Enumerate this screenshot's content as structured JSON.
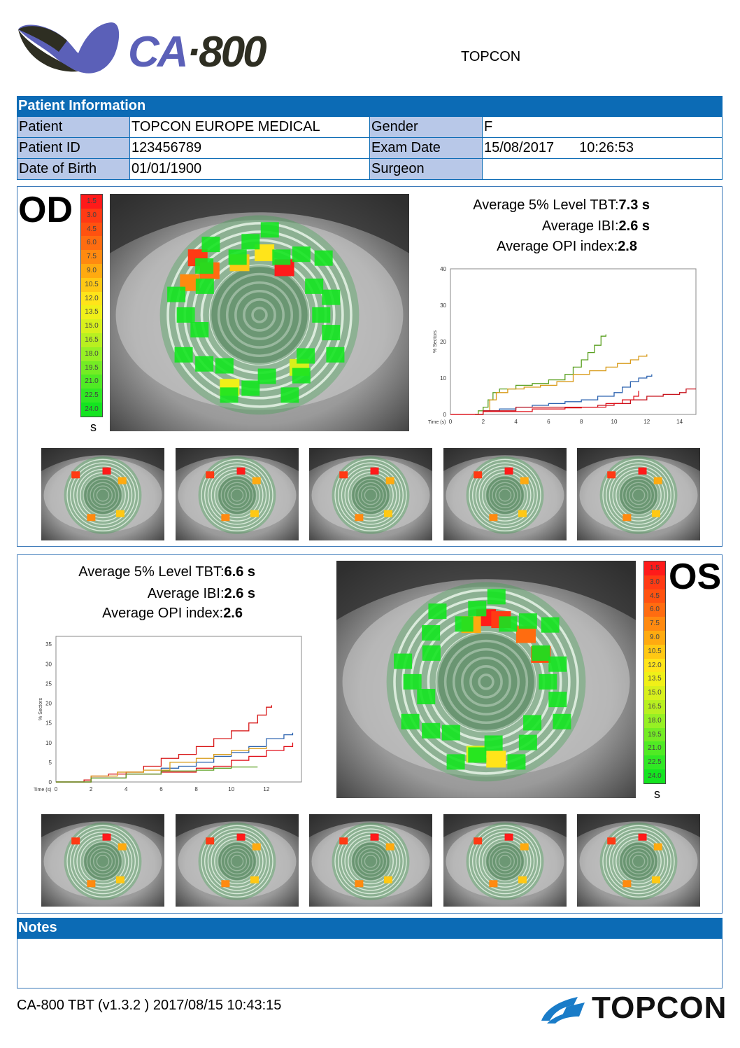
{
  "header": {
    "logo_ca": "CA",
    "logo_num": "·800",
    "brand": "TOPCON"
  },
  "patient_info": {
    "title": "Patient Information",
    "patient_label": "Patient",
    "patient_value": "TOPCON  EUROPE MEDICAL",
    "gender_label": "Gender",
    "gender_value": "F",
    "id_label": "Patient ID",
    "id_value": "123456789",
    "exam_date_label": "Exam Date",
    "exam_date_value": "15/08/2017",
    "exam_time_value": "10:26:53",
    "dob_label": "Date of Birth",
    "dob_value": "01/01/1900",
    "surgeon_label": "Surgeon",
    "surgeon_value": ""
  },
  "scale": {
    "values": [
      "1.5",
      "3.0",
      "4.5",
      "6.0",
      "7.5",
      "9.0",
      "10.5",
      "12.0",
      "13.5",
      "15.0",
      "16.5",
      "18.0",
      "19.5",
      "21.0",
      "22.5",
      "24.0"
    ],
    "colors": [
      "#ff1a1a",
      "#ff3a14",
      "#ff5210",
      "#ff6c10",
      "#ff8a10",
      "#ffaa10",
      "#ffc814",
      "#ffe41a",
      "#f0f018",
      "#d8f01c",
      "#b8f020",
      "#96f024",
      "#74ec24",
      "#50ea24",
      "#30e824",
      "#14e420"
    ],
    "unit": "s"
  },
  "od": {
    "label": "OD",
    "tbt_label": "Average 5% Level TBT:",
    "tbt_value": "7.3 s",
    "ibi_label": "Average IBI:",
    "ibi_value": "2.6 s",
    "opi_label": "Average OPI index:",
    "opi_value": "2.8"
  },
  "os": {
    "label": "OS",
    "tbt_label": "Average 5% Level TBT:",
    "tbt_value": "6.6 s",
    "ibi_label": "Average IBI:",
    "ibi_value": "2.6 s",
    "opi_label": "Average OPI index:",
    "opi_value": "2.6"
  },
  "chart_data": [
    {
      "type": "line",
      "eye": "OD",
      "xlabel": "Time (s)",
      "ylabel": "% Sectors",
      "xlim": [
        0,
        15
      ],
      "ylim": [
        0,
        40
      ],
      "xticks": [
        0,
        2,
        4,
        6,
        8,
        10,
        12,
        14
      ],
      "yticks": [
        0,
        10,
        20,
        30,
        40
      ],
      "grid": false,
      "series": [
        {
          "color": "#5aa020",
          "points": [
            [
              1.5,
              0
            ],
            [
              1.7,
              1
            ],
            [
              2,
              2
            ],
            [
              2.3,
              4
            ],
            [
              2.6,
              6
            ],
            [
              3,
              7
            ],
            [
              4,
              8
            ],
            [
              5,
              8.5
            ],
            [
              6,
              9.5
            ],
            [
              7,
              11
            ],
            [
              7.5,
              13
            ],
            [
              8,
              15
            ],
            [
              8.4,
              17
            ],
            [
              8.8,
              19
            ],
            [
              9.2,
              21.5
            ],
            [
              9.5,
              22
            ]
          ]
        },
        {
          "color": "#d89a18",
          "points": [
            [
              1.5,
              0
            ],
            [
              2,
              1
            ],
            [
              2.4,
              4
            ],
            [
              2.8,
              6
            ],
            [
              3.5,
              7
            ],
            [
              4.5,
              7.5
            ],
            [
              5.5,
              8
            ],
            [
              6.5,
              9
            ],
            [
              7.5,
              11
            ],
            [
              8.5,
              12
            ],
            [
              9.5,
              13
            ],
            [
              10.2,
              14
            ],
            [
              11,
              15
            ],
            [
              11.5,
              16
            ],
            [
              12,
              16.5
            ]
          ]
        },
        {
          "color": "#2e64b0",
          "points": [
            [
              1.5,
              0
            ],
            [
              2,
              1
            ],
            [
              3,
              1.5
            ],
            [
              4,
              2
            ],
            [
              5,
              2.5
            ],
            [
              6,
              3
            ],
            [
              7,
              3.5
            ],
            [
              8,
              4
            ],
            [
              9,
              5
            ],
            [
              10,
              6
            ],
            [
              10.5,
              7.5
            ],
            [
              11,
              9
            ],
            [
              11.5,
              10
            ],
            [
              12,
              10.5
            ],
            [
              12.3,
              11
            ]
          ]
        },
        {
          "color": "#c8141e",
          "points": [
            [
              0,
              0
            ],
            [
              2,
              1
            ],
            [
              4,
              2
            ],
            [
              6,
              2
            ],
            [
              8,
              2
            ],
            [
              9,
              2.5
            ],
            [
              10,
              3
            ],
            [
              11,
              4
            ],
            [
              12,
              5
            ],
            [
              13,
              5.5
            ],
            [
              14,
              6
            ],
            [
              14.4,
              7
            ],
            [
              15,
              7
            ]
          ]
        },
        {
          "color": "#e0101a",
          "points": [
            [
              0,
              0
            ],
            [
              2,
              0.8
            ],
            [
              5,
              1.5
            ],
            [
              7,
              1.8
            ],
            [
              8,
              2
            ],
            [
              9.5,
              3
            ],
            [
              10.5,
              4
            ],
            [
              11.2,
              5
            ],
            [
              11.5,
              6.5
            ]
          ]
        }
      ]
    },
    {
      "type": "line",
      "eye": "OS",
      "xlabel": "Time (s)",
      "ylabel": "% Sectors",
      "xlim": [
        0,
        14
      ],
      "ylim": [
        0,
        37
      ],
      "xticks": [
        0,
        2,
        4,
        6,
        8,
        10,
        12
      ],
      "yticks": [
        0,
        5,
        10,
        15,
        20,
        25,
        30,
        35
      ],
      "grid": false,
      "series": [
        {
          "color": "#d81818",
          "points": [
            [
              0,
              0
            ],
            [
              1.6,
              0.5
            ],
            [
              2,
              1.5
            ],
            [
              3,
              2
            ],
            [
              4,
              2.5
            ],
            [
              5,
              4
            ],
            [
              6,
              6
            ],
            [
              7,
              7
            ],
            [
              8,
              9
            ],
            [
              9,
              11
            ],
            [
              10,
              13
            ],
            [
              11,
              15
            ],
            [
              11.5,
              17
            ],
            [
              12,
              19
            ],
            [
              12.3,
              19.5
            ]
          ]
        },
        {
          "color": "#2e64b0",
          "points": [
            [
              0,
              0
            ],
            [
              2,
              1
            ],
            [
              4,
              2
            ],
            [
              6,
              3.5
            ],
            [
              7,
              4
            ],
            [
              8,
              5
            ],
            [
              9,
              6.5
            ],
            [
              10,
              7.5
            ],
            [
              11,
              9
            ],
            [
              12,
              11
            ],
            [
              13,
              12
            ],
            [
              13.5,
              12.5
            ]
          ]
        },
        {
          "color": "#d89a18",
          "points": [
            [
              0,
              0
            ],
            [
              2,
              1.5
            ],
            [
              3.5,
              2.5
            ],
            [
              5,
              3
            ],
            [
              6.5,
              5
            ],
            [
              8,
              6
            ],
            [
              9,
              7
            ],
            [
              10,
              8
            ],
            [
              11,
              8.5
            ],
            [
              12,
              9
            ]
          ]
        },
        {
          "color": "#e0101a",
          "points": [
            [
              0,
              0
            ],
            [
              2,
              1
            ],
            [
              4,
              2
            ],
            [
              6,
              2.5
            ],
            [
              8,
              3.5
            ],
            [
              9,
              4
            ],
            [
              10,
              5.5
            ],
            [
              11,
              6.5
            ],
            [
              12,
              8
            ],
            [
              13,
              9
            ],
            [
              13.5,
              10
            ]
          ]
        },
        {
          "color": "#5aa020",
          "points": [
            [
              0,
              0
            ],
            [
              2,
              1
            ],
            [
              4,
              2
            ],
            [
              6,
              2.8
            ],
            [
              8,
              3
            ],
            [
              9,
              3.5
            ],
            [
              10,
              3.8
            ],
            [
              11.5,
              3.8
            ]
          ]
        }
      ]
    }
  ],
  "notes": {
    "title": "Notes",
    "text": ""
  },
  "footer": {
    "text": "CA-800 TBT (v1.3.2 )  2017/08/15 10:43:15",
    "brand": "TOPCON"
  }
}
